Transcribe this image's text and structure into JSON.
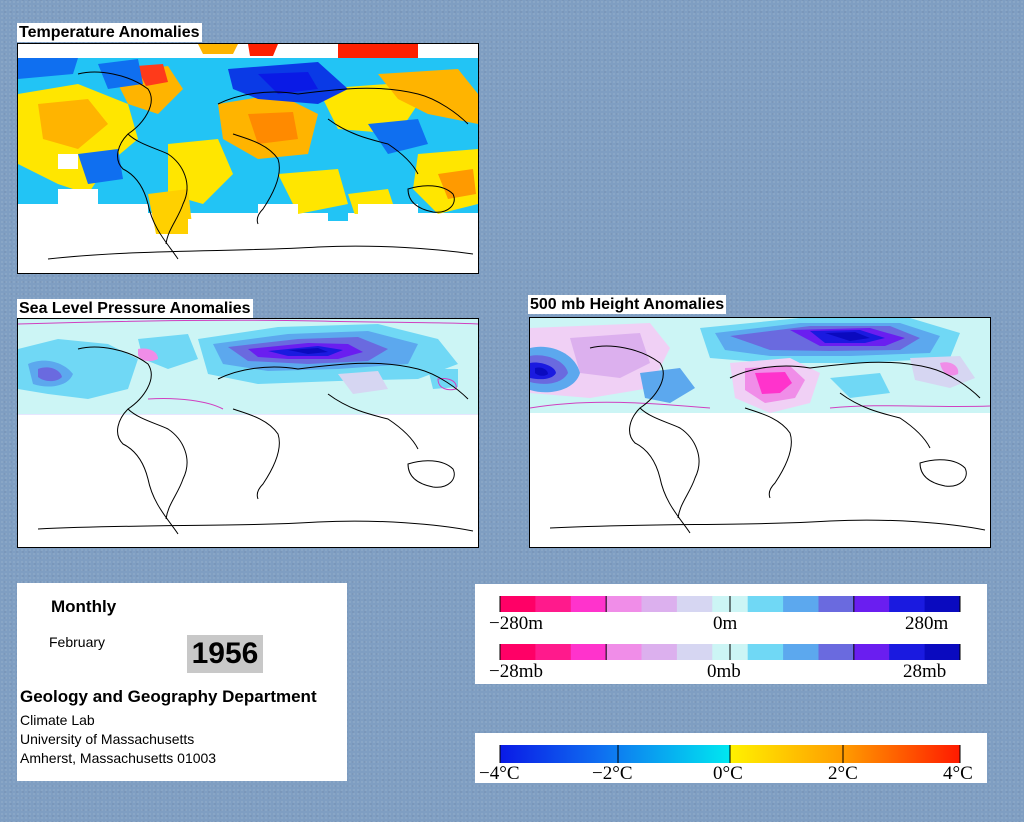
{
  "maps": {
    "temperature": {
      "title": "Temperature Anomalies"
    },
    "slp": {
      "title": "Sea Level Pressure Anomalies"
    },
    "height500": {
      "title": "500 mb Height Anomalies"
    }
  },
  "info": {
    "period": "Monthly",
    "month": "February",
    "year": "1956",
    "department": "Geology and Geography Department",
    "lab": "Climate Lab",
    "university": "University of Massachusetts",
    "address": "Amherst, Massachusetts 01003"
  },
  "legends": {
    "height": {
      "min": "−280m",
      "mid": "0m",
      "max": "280m"
    },
    "pressure": {
      "min": "−28mb",
      "mid": "0mb",
      "max": "28mb"
    },
    "temperature": {
      "l1": "−4°C",
      "l2": "−2°C",
      "l3": "0°C",
      "l4": "2°C",
      "l5": "4°C"
    }
  },
  "colors": {
    "anomaly_ramp_neg_to_pos": [
      "#ff0066",
      "#ff1a8c",
      "#ff33cc",
      "#f08de8",
      "#dcb0ee",
      "#d6d6f2",
      "#ccf5f5",
      "#70d8f5",
      "#5ca8ee",
      "#6a6adf",
      "#6a1ef0",
      "#1a1ae0",
      "#0a0abf"
    ],
    "temp_ramp": [
      "#0a1ae6",
      "#0f6ff0",
      "#1aa8f2",
      "#22d2f5",
      "#00e8f0",
      "#fff200",
      "#ffc800",
      "#ff9a00",
      "#ff6a00",
      "#ff2000"
    ]
  }
}
